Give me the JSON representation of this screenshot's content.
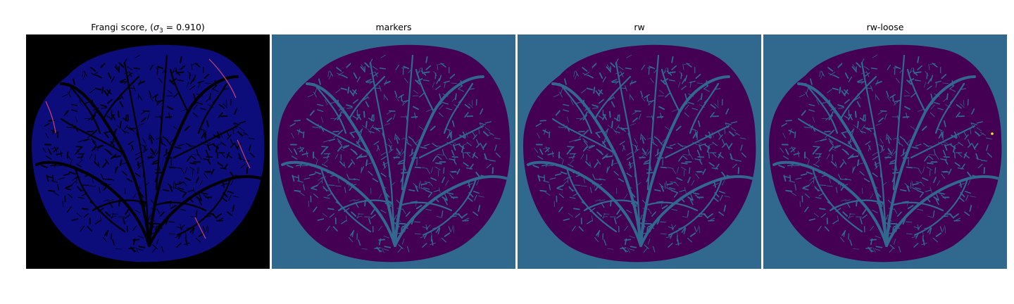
{
  "figure": {
    "panels": [
      {
        "id": "frangi",
        "title_prefix": "Frangi score, (",
        "title_symbol": "σ",
        "title_subscript": "3",
        "title_suffix": " = 0.910)",
        "background_color": "#000000",
        "blob_color": "#0c0c7a",
        "vessel_color": "#000000",
        "highlight_color": "#e04b6b"
      },
      {
        "id": "markers",
        "title": "markers",
        "background_color": "#31688e",
        "blob_color": "#440154",
        "vessel_color": "#31688e"
      },
      {
        "id": "rw",
        "title": "rw",
        "background_color": "#31688e",
        "blob_color": "#440154",
        "vessel_color": "#31688e"
      },
      {
        "id": "rw-loose",
        "title": "rw-loose",
        "background_color": "#31688e",
        "blob_color": "#440154",
        "vessel_color": "#31688e",
        "marker_color": "#fde725"
      }
    ]
  }
}
